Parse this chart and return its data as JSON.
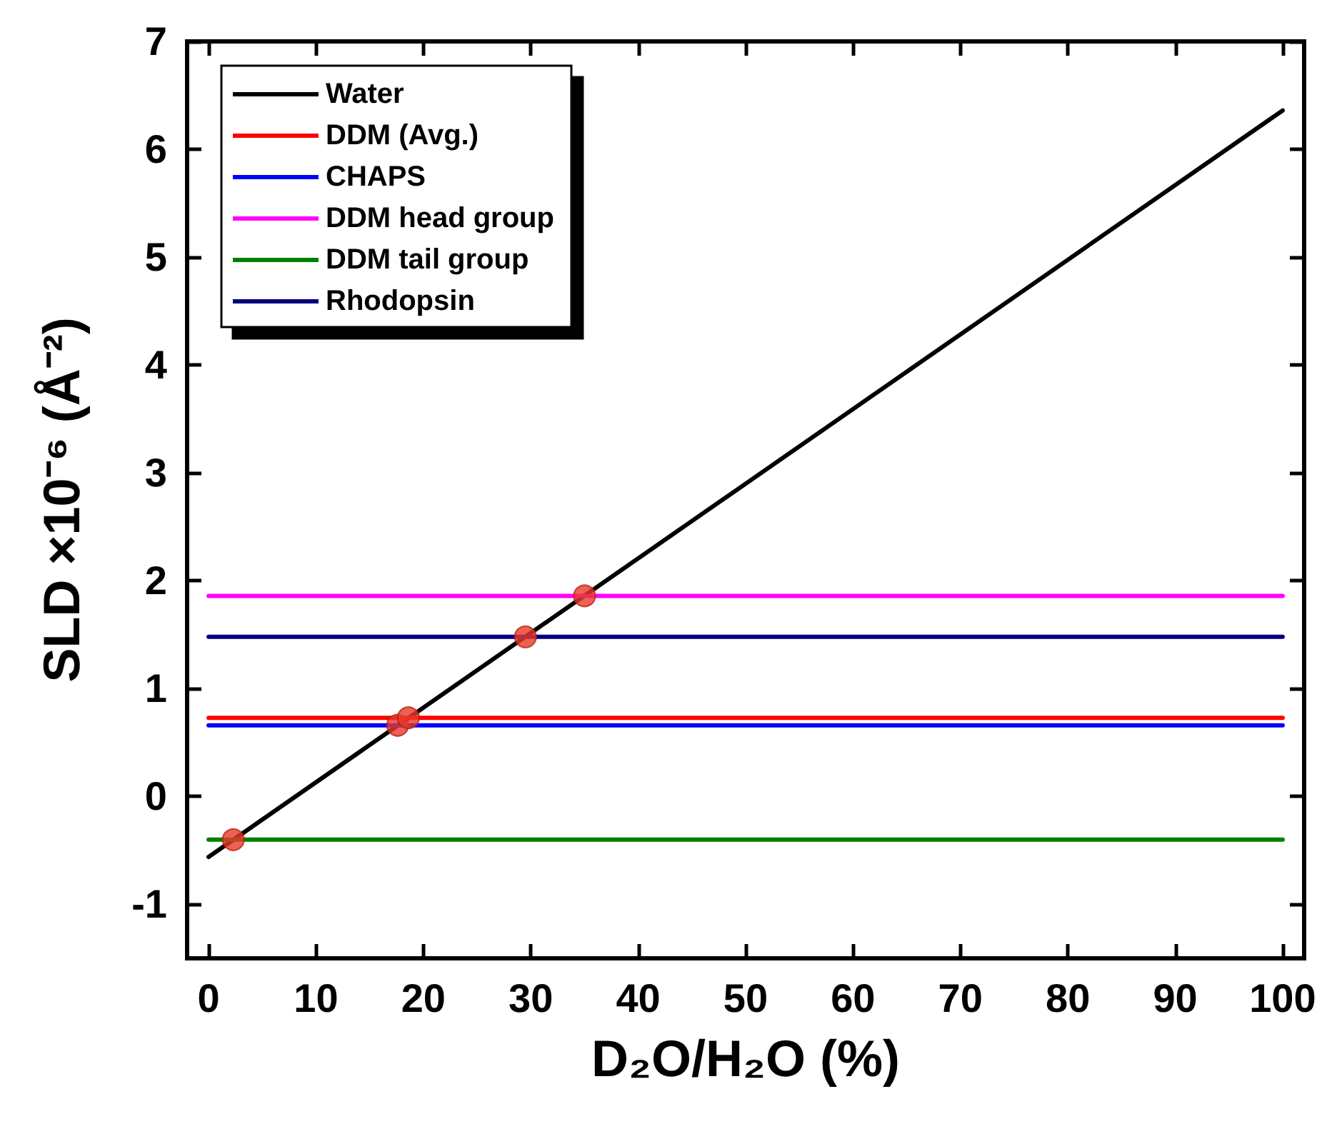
{
  "chart_data": {
    "type": "line",
    "xlabel": "D₂O/H₂O (%)",
    "ylabel": "SLD ×10⁻⁶ (Å⁻²)",
    "xlim": [
      -2,
      102
    ],
    "xticks": [
      0,
      10,
      20,
      30,
      40,
      50,
      60,
      70,
      80,
      90,
      100
    ],
    "ylim": [
      -1.5,
      7
    ],
    "yticks": [
      -1,
      0,
      1,
      2,
      3,
      4,
      5,
      6,
      7
    ],
    "grid": false,
    "legend": "top left",
    "marker": "none",
    "line_style": "solid",
    "series": [
      {
        "name": "Water",
        "color": "#000000",
        "x": [
          0,
          100
        ],
        "values": [
          -0.56,
          6.36
        ]
      },
      {
        "name": "DDM (Avg.)",
        "color": "#ff0000",
        "x": [
          0,
          100
        ],
        "values": [
          0.73,
          0.73
        ]
      },
      {
        "name": "CHAPS",
        "color": "#0000ff",
        "x": [
          0,
          100
        ],
        "values": [
          0.66,
          0.66
        ]
      },
      {
        "name": "DDM head group",
        "color": "#ff00ff",
        "x": [
          0,
          100
        ],
        "values": [
          1.86,
          1.86
        ]
      },
      {
        "name": "DDM tail group",
        "color": "#008000",
        "x": [
          0,
          100
        ],
        "values": [
          -0.4,
          -0.4
        ]
      },
      {
        "name": "Rhodopsin",
        "color": "#000080",
        "x": [
          0,
          100
        ],
        "values": [
          1.48,
          1.48
        ]
      },
      {
        "type": "scatter",
        "marker": "circle",
        "color": "#e8392b",
        "x": [
          2.3,
          17.6,
          18.6,
          29.5,
          35.0
        ],
        "values": [
          -0.4,
          0.66,
          0.73,
          1.48,
          1.86
        ]
      }
    ]
  }
}
